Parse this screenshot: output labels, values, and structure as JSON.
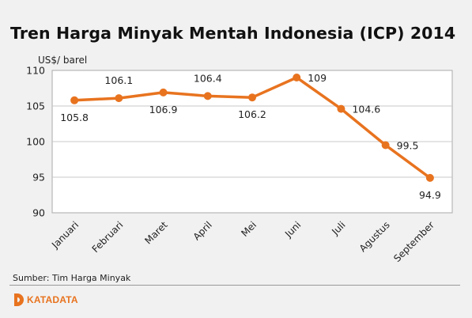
{
  "chart_data": {
    "type": "line",
    "title": "Tren Harga Minyak Mentah Indonesia (ICP) 2014",
    "ylabel": "US$/ barel",
    "xlabel": "",
    "categories": [
      "Januari",
      "Februari",
      "Maret",
      "April",
      "Mei",
      "Juni",
      "Juli",
      "Agustus",
      "September"
    ],
    "series": [
      {
        "values": [
          105.8,
          106.1,
          106.9,
          106.4,
          106.2,
          109,
          104.6,
          99.5,
          94.9
        ]
      }
    ],
    "data_labels": [
      "105.8",
      "106.1",
      "106.9",
      "106.4",
      "106.2",
      "109",
      "104.6",
      "99.5",
      "94.9"
    ],
    "ylim": [
      90,
      110
    ],
    "yticks": [
      90,
      95,
      100,
      105,
      110
    ],
    "grid": true,
    "line_color": "#e8731f"
  },
  "source": "Sumber: Tim Harga Minyak",
  "brand": {
    "name": "KATADATA",
    "logo_icon": "katadata-logo-icon"
  }
}
